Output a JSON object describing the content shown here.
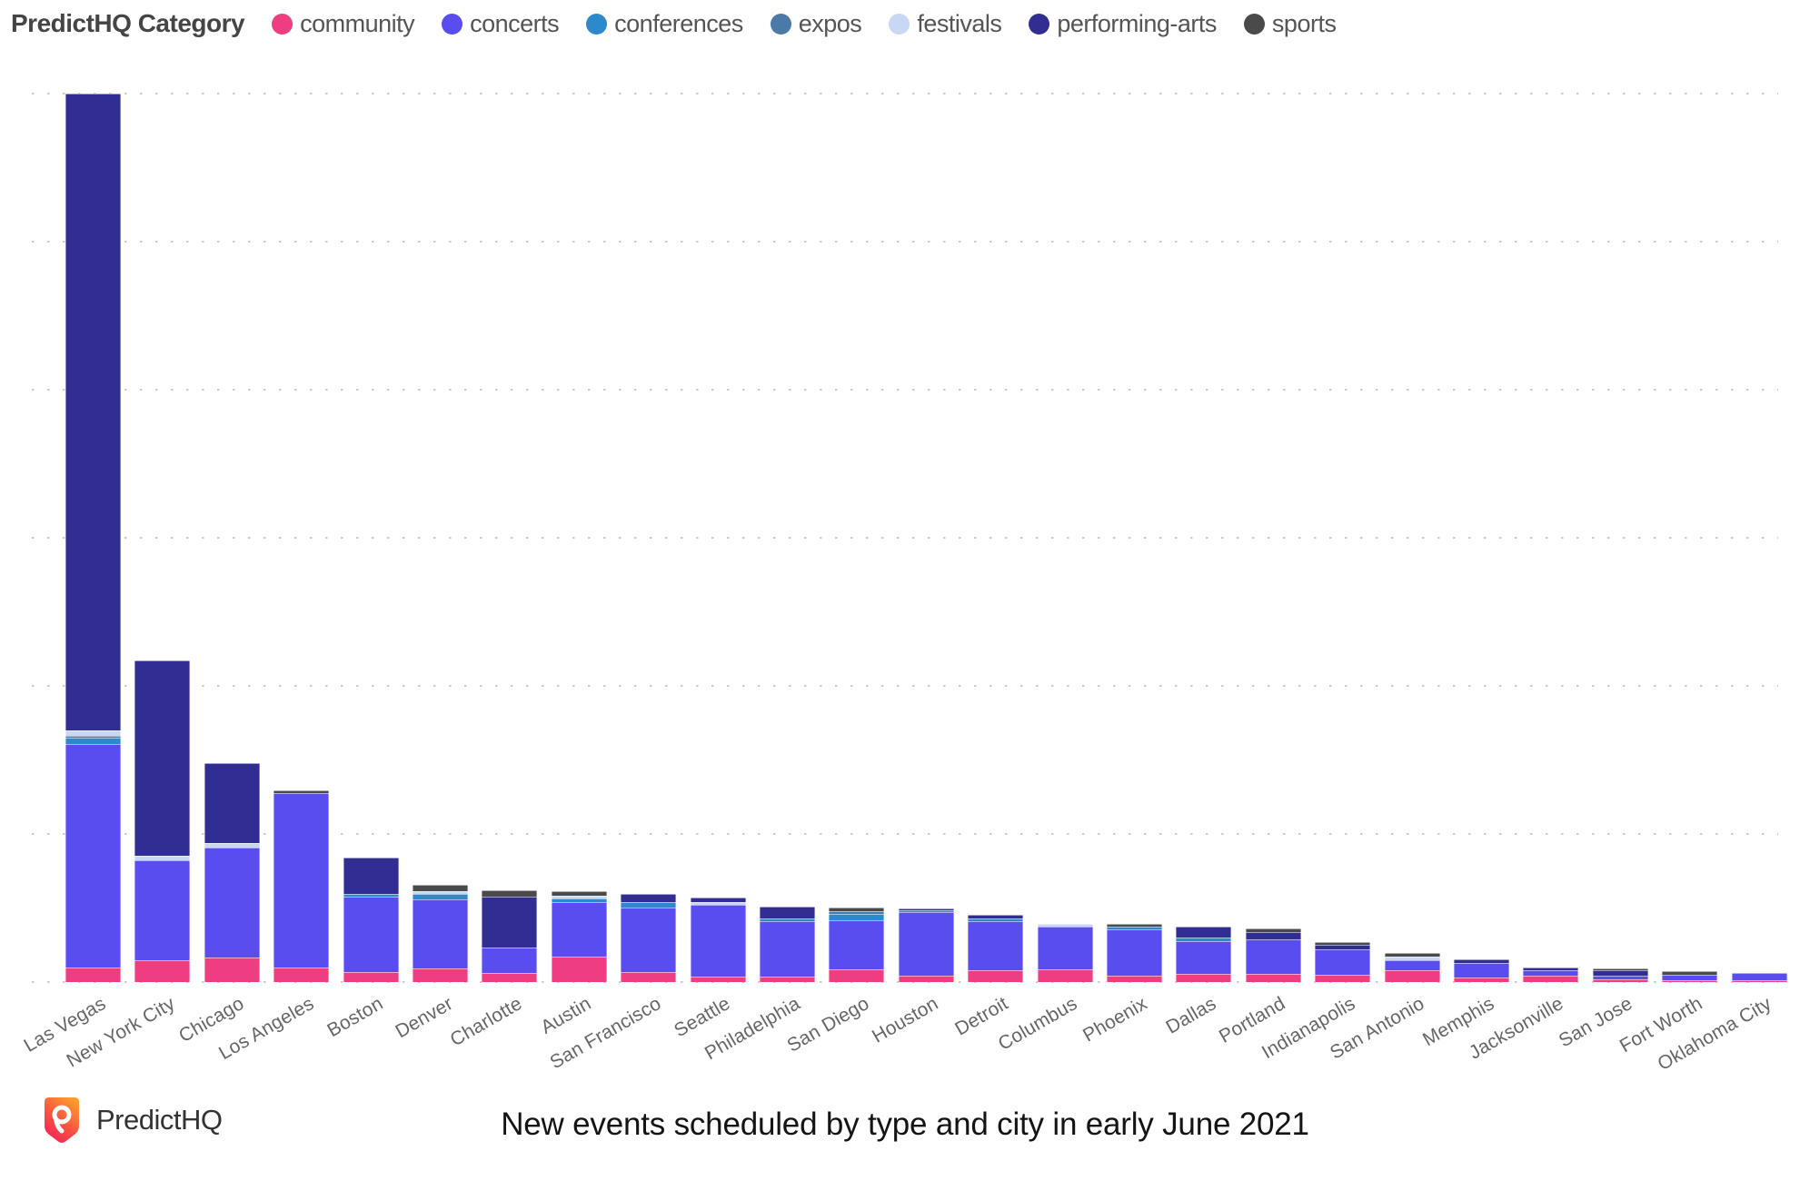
{
  "legend": {
    "title": "PredictHQ Category",
    "items": [
      {
        "label": "community",
        "color": "#ee3d80"
      },
      {
        "label": "concerts",
        "color": "#5a4df0"
      },
      {
        "label": "conferences",
        "color": "#2e89cc"
      },
      {
        "label": "expos",
        "color": "#4b79a8"
      },
      {
        "label": "festivals",
        "color": "#c7d7f4"
      },
      {
        "label": "performing-arts",
        "color": "#322d92"
      },
      {
        "label": "sports",
        "color": "#4a4a4a"
      }
    ]
  },
  "footer": {
    "brand": "PredictHQ",
    "title": "New events scheduled by type and city in early June 2021"
  },
  "chart_data": {
    "type": "bar",
    "stacked": true,
    "title": "New events scheduled by type and city in early June 2021",
    "legend_title": "PredictHQ Category",
    "legend_position": "top",
    "categories": [
      "Las Vegas",
      "New York City",
      "Chicago",
      "Los Angeles",
      "Boston",
      "Denver",
      "Charlotte",
      "Austin",
      "San Francisco",
      "Seattle",
      "Philadelphia",
      "San Diego",
      "Houston",
      "Detroit",
      "Columbus",
      "Phoenix",
      "Dallas",
      "Portland",
      "Indianapolis",
      "San Antonio",
      "Memphis",
      "Jacksonville",
      "San Jose",
      "Fort Worth",
      "Oklahoma City"
    ],
    "xlabel": "",
    "ylabel": "",
    "y_axis": {
      "numeric_labels_visible": false,
      "gridlines_count": 7,
      "note": "y axis has no tick labels; values below are stacked segment heights measured in screenshot pixels (1 gridline interval = 163 px, Las Vegas total = 978 px = 6.0 gridline units)"
    },
    "series": [
      {
        "name": "community",
        "color": "#ee3d80",
        "values": [
          16,
          24,
          27,
          16,
          11,
          15,
          10,
          28,
          11,
          6,
          6,
          14,
          7,
          13,
          14,
          7,
          9,
          9,
          8,
          13,
          5,
          7,
          3,
          2,
          2
        ]
      },
      {
        "name": "concerts",
        "color": "#5a4df0",
        "values": [
          246,
          110,
          121,
          192,
          83,
          76,
          28,
          60,
          71,
          79,
          61,
          54,
          70,
          54,
          47,
          51,
          36,
          38,
          28,
          11,
          16,
          6,
          4,
          6,
          8
        ]
      },
      {
        "name": "conferences",
        "color": "#2e89cc",
        "values": [
          7,
          0,
          0,
          0,
          3,
          6,
          0,
          4,
          6,
          0,
          3,
          7,
          2,
          3,
          0,
          3,
          4,
          0,
          0,
          0,
          0,
          0,
          0,
          0,
          0
        ]
      },
      {
        "name": "expos",
        "color": "#4b79a8",
        "values": [
          2,
          0,
          0,
          0,
          0,
          0,
          0,
          0,
          0,
          0,
          0,
          3,
          0,
          0,
          0,
          0,
          0,
          0,
          0,
          0,
          0,
          0,
          0,
          0,
          0
        ]
      },
      {
        "name": "festivals",
        "color": "#c7d7f4",
        "values": [
          6,
          5,
          5,
          0,
          0,
          3,
          0,
          3,
          0,
          3,
          0,
          0,
          0,
          0,
          3,
          0,
          0,
          0,
          0,
          4,
          0,
          0,
          0,
          0,
          0
        ]
      },
      {
        "name": "performing-arts",
        "color": "#322d92",
        "values": [
          701,
          215,
          88,
          0,
          40,
          0,
          56,
          0,
          9,
          5,
          13,
          0,
          2,
          4,
          0,
          0,
          12,
          8,
          5,
          0,
          4,
          3,
          6,
          0,
          0
        ]
      },
      {
        "name": "sports",
        "color": "#4a4a4a",
        "values": [
          0,
          0,
          0,
          3,
          0,
          7,
          7,
          5,
          0,
          0,
          0,
          4,
          0,
          0,
          0,
          3,
          0,
          4,
          3,
          4,
          0,
          0,
          2,
          4,
          0
        ]
      }
    ]
  }
}
